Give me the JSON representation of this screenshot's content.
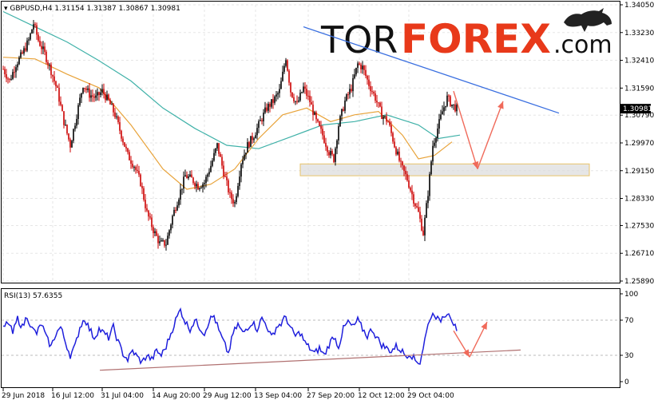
{
  "chart_data": [
    {
      "type": "candlestick",
      "header": {
        "symbol": "GBPUSD,H4",
        "open": "1.31154",
        "high": "1.31387",
        "low": "1.30867",
        "close": "1.30981"
      },
      "current_price_label": "1.30981",
      "y_ticks": [
        "1.34050",
        "1.33230",
        "1.32410",
        "1.31590",
        "1.30790",
        "1.29970",
        "1.29150",
        "1.28330",
        "1.27530",
        "1.26710",
        "1.25890"
      ],
      "ylim": [
        1.2589,
        1.3405
      ],
      "x_ticks": [
        "29 Jun 2018",
        "16 Jul 12:00",
        "31 Jul 04:00",
        "14 Aug 20:00",
        "29 Aug 12:00",
        "13 Sep 04:00",
        "27 Sep 20:00",
        "12 Oct 12:00",
        "29 Oct 04:00"
      ],
      "price_path": [
        [
          0,
          1.3215
        ],
        [
          8,
          1.318
        ],
        [
          16,
          1.323
        ],
        [
          24,
          1.326
        ],
        [
          32,
          1.33
        ],
        [
          38,
          1.335
        ],
        [
          44,
          1.33
        ],
        [
          52,
          1.326
        ],
        [
          60,
          1.321
        ],
        [
          68,
          1.315
        ],
        [
          76,
          1.306
        ],
        [
          84,
          1.299
        ],
        [
          92,
          1.308
        ],
        [
          100,
          1.317
        ],
        [
          108,
          1.314
        ],
        [
          116,
          1.313
        ],
        [
          124,
          1.315
        ],
        [
          132,
          1.312
        ],
        [
          140,
          1.308
        ],
        [
          148,
          1.302
        ],
        [
          156,
          1.296
        ],
        [
          164,
          1.293
        ],
        [
          172,
          1.288
        ],
        [
          180,
          1.279
        ],
        [
          188,
          1.274
        ],
        [
          196,
          1.27
        ],
        [
          204,
          1.27
        ],
        [
          212,
          1.278
        ],
        [
          220,
          1.284
        ],
        [
          228,
          1.29
        ],
        [
          236,
          1.289
        ],
        [
          244,
          1.287
        ],
        [
          252,
          1.288
        ],
        [
          260,
          1.293
        ],
        [
          268,
          1.299
        ],
        [
          276,
          1.291
        ],
        [
          284,
          1.284
        ],
        [
          290,
          1.282
        ],
        [
          298,
          1.294
        ],
        [
          306,
          1.299
        ],
        [
          314,
          1.302
        ],
        [
          322,
          1.306
        ],
        [
          330,
          1.31
        ],
        [
          338,
          1.312
        ],
        [
          346,
          1.315
        ],
        [
          354,
          1.325
        ],
        [
          360,
          1.315
        ],
        [
          368,
          1.311
        ],
        [
          376,
          1.316
        ],
        [
          384,
          1.312
        ],
        [
          392,
          1.306
        ],
        [
          400,
          1.302
        ],
        [
          408,
          1.297
        ],
        [
          414,
          1.295
        ],
        [
          420,
          1.305
        ],
        [
          428,
          1.312
        ],
        [
          436,
          1.316
        ],
        [
          444,
          1.323
        ],
        [
          450,
          1.322
        ],
        [
          458,
          1.317
        ],
        [
          466,
          1.313
        ],
        [
          474,
          1.308
        ],
        [
          482,
          1.306
        ],
        [
          490,
          1.299
        ],
        [
          498,
          1.293
        ],
        [
          506,
          1.289
        ],
        [
          514,
          1.283
        ],
        [
          520,
          1.279
        ],
        [
          526,
          1.273
        ],
        [
          532,
          1.285
        ],
        [
          538,
          1.299
        ],
        [
          544,
          1.304
        ],
        [
          550,
          1.309
        ],
        [
          556,
          1.313
        ],
        [
          562,
          1.311
        ],
        [
          568,
          1.3098
        ]
      ],
      "ma_fast": [
        [
          0,
          1.325
        ],
        [
          40,
          1.3245
        ],
        [
          80,
          1.32
        ],
        [
          120,
          1.316
        ],
        [
          160,
          1.305
        ],
        [
          200,
          1.292
        ],
        [
          230,
          1.286
        ],
        [
          260,
          1.2875
        ],
        [
          290,
          1.292
        ],
        [
          320,
          1.301
        ],
        [
          350,
          1.308
        ],
        [
          380,
          1.31
        ],
        [
          410,
          1.306
        ],
        [
          440,
          1.308
        ],
        [
          470,
          1.309
        ],
        [
          500,
          1.302
        ],
        [
          520,
          1.295
        ],
        [
          540,
          1.296
        ],
        [
          562,
          1.3
        ]
      ],
      "ma_slow": [
        [
          0,
          1.3385
        ],
        [
          40,
          1.334
        ],
        [
          80,
          1.3295
        ],
        [
          120,
          1.324
        ],
        [
          160,
          1.318
        ],
        [
          200,
          1.31
        ],
        [
          240,
          1.304
        ],
        [
          280,
          1.299
        ],
        [
          320,
          1.298
        ],
        [
          360,
          1.3015
        ],
        [
          400,
          1.305
        ],
        [
          440,
          1.306
        ],
        [
          480,
          1.308
        ],
        [
          520,
          1.305
        ],
        [
          545,
          1.301
        ],
        [
          572,
          1.302
        ]
      ],
      "resistance_line": {
        "x0": 380,
        "y0": 1.334,
        "x1": 700,
        "y1": 1.3085
      },
      "support_zone": {
        "x0": 376,
        "x1": 738,
        "y_top": 1.2935,
        "y_bottom": 1.29
      },
      "forecast_arrows": [
        {
          "from": [
            568,
            1.315
          ],
          "to": [
            598,
            1.292
          ]
        },
        {
          "from": [
            598,
            1.292
          ],
          "to": [
            630,
            1.312
          ]
        }
      ],
      "colors": {
        "candles": "#000000",
        "bull_wick": "#000000",
        "bear": "#cc0000",
        "ma_fast": "#e8a33a",
        "ma_slow": "#3fb1a8",
        "resistance": "#3a6fe0",
        "support_fill": "#dcdcdc",
        "support_border": "#e8c36a",
        "arrows": "#f06a5a"
      }
    },
    {
      "type": "line",
      "label": "RSI(13) 57.6355",
      "y_ticks": [
        "100",
        "70",
        "30",
        "0"
      ],
      "ylim": [
        0,
        100
      ],
      "values": [
        [
          0,
          60
        ],
        [
          6,
          68
        ],
        [
          12,
          55
        ],
        [
          18,
          72
        ],
        [
          24,
          62
        ],
        [
          30,
          75
        ],
        [
          36,
          60
        ],
        [
          42,
          55
        ],
        [
          48,
          66
        ],
        [
          54,
          50
        ],
        [
          60,
          40
        ],
        [
          66,
          55
        ],
        [
          72,
          62
        ],
        [
          78,
          45
        ],
        [
          84,
          30
        ],
        [
          90,
          40
        ],
        [
          96,
          62
        ],
        [
          102,
          72
        ],
        [
          108,
          60
        ],
        [
          114,
          50
        ],
        [
          120,
          60
        ],
        [
          126,
          55
        ],
        [
          132,
          50
        ],
        [
          138,
          62
        ],
        [
          144,
          45
        ],
        [
          150,
          32
        ],
        [
          156,
          25
        ],
        [
          162,
          35
        ],
        [
          168,
          28
        ],
        [
          174,
          22
        ],
        [
          180,
          30
        ],
        [
          186,
          25
        ],
        [
          192,
          35
        ],
        [
          198,
          30
        ],
        [
          204,
          40
        ],
        [
          210,
          55
        ],
        [
          216,
          70
        ],
        [
          222,
          82
        ],
        [
          228,
          68
        ],
        [
          234,
          60
        ],
        [
          240,
          70
        ],
        [
          246,
          62
        ],
        [
          252,
          55
        ],
        [
          258,
          70
        ],
        [
          264,
          75
        ],
        [
          270,
          58
        ],
        [
          276,
          45
        ],
        [
          282,
          32
        ],
        [
          288,
          55
        ],
        [
          294,
          65
        ],
        [
          300,
          55
        ],
        [
          306,
          62
        ],
        [
          312,
          68
        ],
        [
          318,
          60
        ],
        [
          324,
          72
        ],
        [
          330,
          64
        ],
        [
          336,
          50
        ],
        [
          342,
          62
        ],
        [
          348,
          66
        ],
        [
          354,
          74
        ],
        [
          360,
          60
        ],
        [
          366,
          52
        ],
        [
          372,
          56
        ],
        [
          378,
          44
        ],
        [
          384,
          38
        ],
        [
          390,
          32
        ],
        [
          396,
          38
        ],
        [
          402,
          30
        ],
        [
          408,
          42
        ],
        [
          414,
          52
        ],
        [
          420,
          40
        ],
        [
          426,
          60
        ],
        [
          432,
          68
        ],
        [
          438,
          62
        ],
        [
          444,
          70
        ],
        [
          450,
          60
        ],
        [
          456,
          52
        ],
        [
          462,
          60
        ],
        [
          468,
          50
        ],
        [
          474,
          42
        ],
        [
          480,
          38
        ],
        [
          486,
          35
        ],
        [
          492,
          40
        ],
        [
          498,
          36
        ],
        [
          504,
          30
        ],
        [
          510,
          32
        ],
        [
          516,
          24
        ],
        [
          522,
          22
        ],
        [
          528,
          48
        ],
        [
          534,
          72
        ],
        [
          540,
          78
        ],
        [
          546,
          68
        ],
        [
          552,
          76
        ],
        [
          558,
          80
        ],
        [
          564,
          66
        ],
        [
          568,
          57.64
        ]
      ],
      "trend_line": {
        "x0": 125,
        "y0": 13,
        "x1": 652,
        "y1": 36
      },
      "forecast_arrows": [
        {
          "from": [
            568,
            58
          ],
          "to": [
            588,
            28
          ]
        },
        {
          "from": [
            588,
            28
          ],
          "to": [
            610,
            68
          ]
        }
      ],
      "colors": {
        "line": "#1f1fdc",
        "trend": "#b07070",
        "arrows": "#f06a5a"
      }
    }
  ],
  "branding": {
    "part1": "TOR",
    "part2": "FOREX",
    "part3": ".com"
  }
}
